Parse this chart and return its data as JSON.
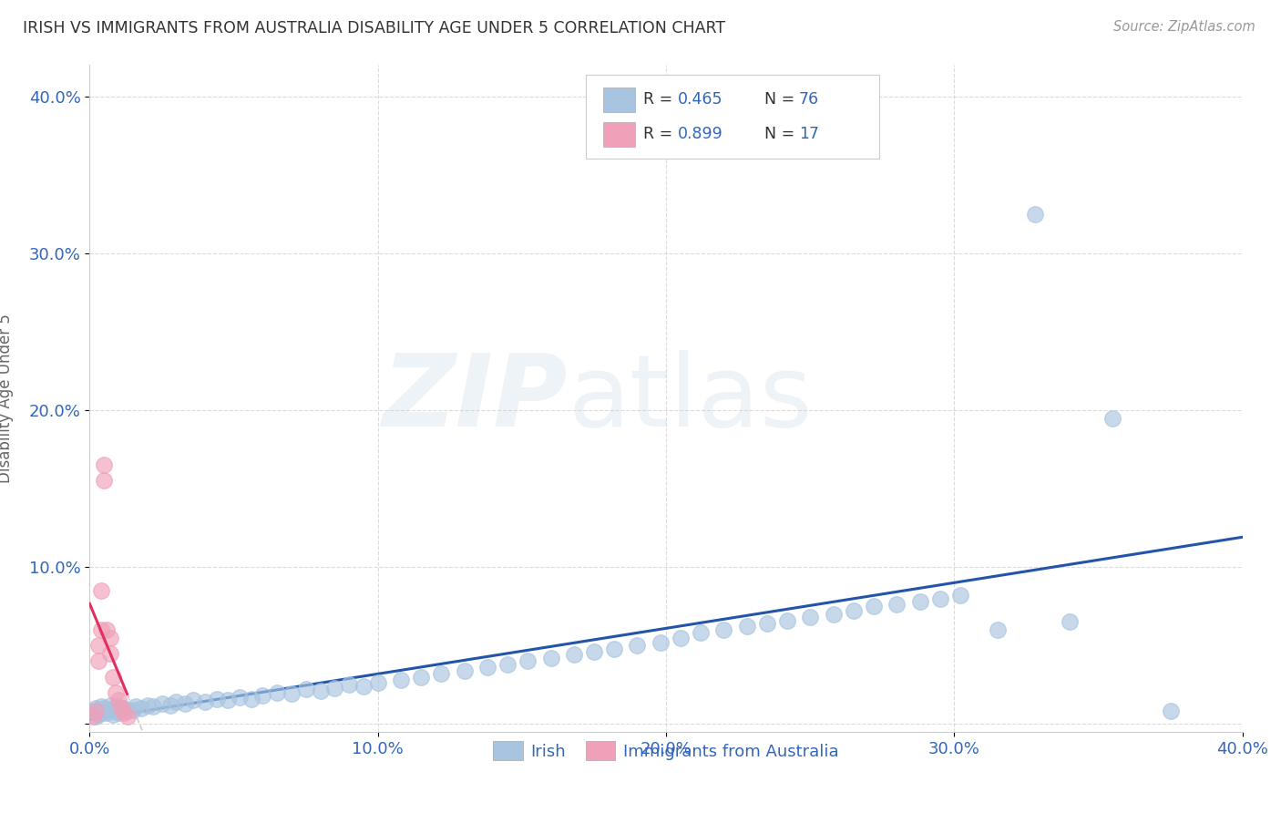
{
  "title": "IRISH VS IMMIGRANTS FROM AUSTRALIA DISABILITY AGE UNDER 5 CORRELATION CHART",
  "source": "Source: ZipAtlas.com",
  "ylabel": "Disability Age Under 5",
  "xlim": [
    0.0,
    0.4
  ],
  "ylim": [
    -0.005,
    0.42
  ],
  "xticks": [
    0.0,
    0.1,
    0.2,
    0.3,
    0.4
  ],
  "yticks": [
    0.0,
    0.1,
    0.2,
    0.3,
    0.4
  ],
  "xticklabels": [
    "0.0%",
    "10.0%",
    "20.0%",
    "30.0%",
    "40.0%"
  ],
  "yticklabels": [
    "",
    "10.0%",
    "20.0%",
    "30.0%",
    "40.0%"
  ],
  "R_irish": 0.465,
  "N_irish": 76,
  "R_aus": 0.899,
  "N_aus": 17,
  "irish_color": "#a8c4e0",
  "aus_color": "#f0a0b8",
  "irish_line_color": "#2255aa",
  "aus_line_color": "#e03060",
  "irish_x": [
    0.001,
    0.002,
    0.002,
    0.003,
    0.003,
    0.004,
    0.004,
    0.005,
    0.005,
    0.006,
    0.007,
    0.007,
    0.008,
    0.008,
    0.009,
    0.01,
    0.01,
    0.011,
    0.012,
    0.013,
    0.015,
    0.016,
    0.018,
    0.02,
    0.022,
    0.025,
    0.028,
    0.03,
    0.033,
    0.036,
    0.04,
    0.044,
    0.048,
    0.052,
    0.056,
    0.06,
    0.065,
    0.07,
    0.075,
    0.08,
    0.085,
    0.09,
    0.095,
    0.1,
    0.108,
    0.115,
    0.122,
    0.13,
    0.138,
    0.145,
    0.152,
    0.16,
    0.168,
    0.175,
    0.182,
    0.19,
    0.198,
    0.205,
    0.212,
    0.22,
    0.228,
    0.235,
    0.242,
    0.25,
    0.258,
    0.265,
    0.272,
    0.28,
    0.288,
    0.295,
    0.302,
    0.315,
    0.328,
    0.34,
    0.355,
    0.375
  ],
  "irish_y": [
    0.008,
    0.005,
    0.01,
    0.006,
    0.009,
    0.007,
    0.011,
    0.008,
    0.01,
    0.007,
    0.009,
    0.012,
    0.006,
    0.01,
    0.008,
    0.011,
    0.007,
    0.009,
    0.01,
    0.008,
    0.009,
    0.011,
    0.01,
    0.012,
    0.011,
    0.013,
    0.012,
    0.014,
    0.013,
    0.015,
    0.014,
    0.016,
    0.015,
    0.017,
    0.016,
    0.018,
    0.02,
    0.019,
    0.022,
    0.021,
    0.023,
    0.025,
    0.024,
    0.026,
    0.028,
    0.03,
    0.032,
    0.034,
    0.036,
    0.038,
    0.04,
    0.042,
    0.044,
    0.046,
    0.048,
    0.05,
    0.052,
    0.055,
    0.058,
    0.06,
    0.062,
    0.064,
    0.066,
    0.068,
    0.07,
    0.072,
    0.075,
    0.076,
    0.078,
    0.08,
    0.082,
    0.06,
    0.325,
    0.065,
    0.195,
    0.008
  ],
  "aus_x": [
    0.001,
    0.002,
    0.003,
    0.003,
    0.004,
    0.004,
    0.005,
    0.005,
    0.006,
    0.007,
    0.007,
    0.008,
    0.009,
    0.01,
    0.011,
    0.012,
    0.013
  ],
  "aus_y": [
    0.005,
    0.008,
    0.04,
    0.05,
    0.06,
    0.085,
    0.155,
    0.165,
    0.06,
    0.055,
    0.045,
    0.03,
    0.02,
    0.015,
    0.01,
    0.007,
    0.005
  ]
}
